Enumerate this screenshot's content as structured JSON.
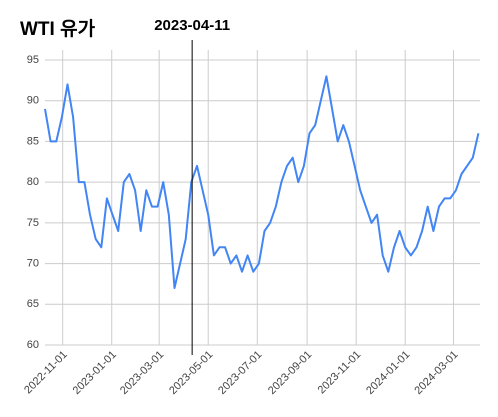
{
  "chart_data": {
    "type": "line",
    "title": "WTI 유가",
    "annotation": {
      "x": "2023-04-11"
    },
    "x": [
      "2022-10-10",
      "2022-10-17",
      "2022-10-24",
      "2022-10-31",
      "2022-11-07",
      "2022-11-14",
      "2022-11-21",
      "2022-11-28",
      "2022-12-05",
      "2022-12-12",
      "2022-12-19",
      "2022-12-26",
      "2023-01-02",
      "2023-01-09",
      "2023-01-16",
      "2023-01-23",
      "2023-01-30",
      "2023-02-06",
      "2023-02-13",
      "2023-02-20",
      "2023-02-27",
      "2023-03-06",
      "2023-03-13",
      "2023-03-20",
      "2023-03-27",
      "2023-04-03",
      "2023-04-10",
      "2023-04-17",
      "2023-04-24",
      "2023-05-01",
      "2023-05-08",
      "2023-05-15",
      "2023-05-22",
      "2023-05-29",
      "2023-06-05",
      "2023-06-12",
      "2023-06-19",
      "2023-06-26",
      "2023-07-03",
      "2023-07-10",
      "2023-07-17",
      "2023-07-24",
      "2023-07-31",
      "2023-08-07",
      "2023-08-14",
      "2023-08-21",
      "2023-08-28",
      "2023-09-04",
      "2023-09-11",
      "2023-09-18",
      "2023-09-25",
      "2023-10-02",
      "2023-10-09",
      "2023-10-16",
      "2023-10-23",
      "2023-10-30",
      "2023-11-06",
      "2023-11-13",
      "2023-11-20",
      "2023-11-27",
      "2023-12-04",
      "2023-12-11",
      "2023-12-18",
      "2023-12-25",
      "2024-01-01",
      "2024-01-08",
      "2024-01-15",
      "2024-01-22",
      "2024-01-29",
      "2024-02-05",
      "2024-02-12",
      "2024-02-19",
      "2024-02-26",
      "2024-03-04",
      "2024-03-11",
      "2024-03-18",
      "2024-03-25",
      "2024-04-01"
    ],
    "series": [
      {
        "name": "WTI",
        "color": "#4285f4",
        "values": [
          89,
          85,
          85,
          88,
          92,
          88,
          80,
          80,
          76,
          73,
          72,
          78,
          76,
          74,
          80,
          81,
          79,
          74,
          79,
          77,
          77,
          80,
          76,
          67,
          70,
          73,
          80,
          82,
          79,
          76,
          71,
          72,
          72,
          70,
          71,
          69,
          71,
          69,
          70,
          74,
          75,
          77,
          80,
          82,
          83,
          80,
          82,
          86,
          87,
          90,
          93,
          89,
          85,
          87,
          85,
          82,
          79,
          77,
          75,
          76,
          71,
          69,
          72,
          74,
          72,
          71,
          72,
          74,
          77,
          74,
          77,
          78,
          78,
          79,
          81,
          82,
          83,
          86
        ]
      }
    ],
    "xlim": [
      "2022-10-10",
      "2024-04-03"
    ],
    "xticks": [
      "2022-11-01",
      "2023-01-01",
      "2023-03-01",
      "2023-05-01",
      "2023-07-01",
      "2023-09-01",
      "2023-11-01",
      "2024-01-01",
      "2024-03-01"
    ],
    "ylim": [
      60,
      95
    ],
    "yticks": [
      60,
      65,
      70,
      75,
      80,
      85,
      90,
      95
    ],
    "grid": true
  }
}
